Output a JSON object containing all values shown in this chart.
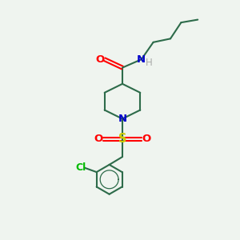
{
  "bg_color": "#eff4ef",
  "bond_color": "#2d6b4a",
  "O_color": "#ff0000",
  "N_color": "#0000cc",
  "S_color": "#cccc00",
  "Cl_color": "#00bb00",
  "H_color": "#aaaaaa",
  "bond_width": 1.5,
  "font_size": 9.5,
  "figsize": [
    3.0,
    3.0
  ],
  "dpi": 100,
  "xlim": [
    0,
    10
  ],
  "ylim": [
    0,
    10
  ]
}
